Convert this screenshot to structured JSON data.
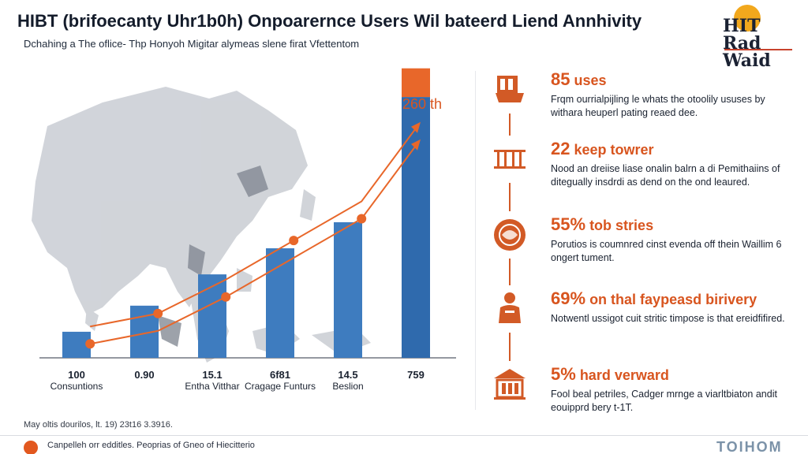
{
  "header": {
    "title": "HIBT (brifoecanty Uhr1b0h) Onpoarernce Users Wil bateerd Liend Annhivity",
    "subtitle": "Dchahing a The oflice- Thp Honyoh Migitar alymeas slene firat Vfettentom"
  },
  "logo": {
    "text": "HIT Rad Waid"
  },
  "chart_data": {
    "type": "bar",
    "title": "",
    "xlabel": "",
    "ylabel": "",
    "categories": [
      {
        "value": "100",
        "label": "Consuntions"
      },
      {
        "value": "0.90",
        "label": ""
      },
      {
        "value": "15.1",
        "label": "Entha Vitthar"
      },
      {
        "value": "6f81",
        "label": "Cragage Funturs"
      },
      {
        "value": "14.5",
        "label": "Beslion"
      },
      {
        "value": "759",
        "label": ""
      }
    ],
    "series": [
      {
        "values": [
          10,
          20,
          32,
          42,
          52,
          100
        ]
      }
    ],
    "highlight": {
      "value_label": "260 th",
      "top_segment": 11,
      "color": "#e8672a"
    },
    "ylim": [
      0,
      110
    ],
    "bar_color": "#3e7cbf",
    "last_bar_color": "#2f6aad",
    "trend_color": "#e8672a",
    "trend_points": [
      [
        0.2,
        12
      ],
      [
        1.2,
        17
      ],
      [
        2.2,
        30
      ],
      [
        3.2,
        45
      ],
      [
        4.2,
        60
      ],
      [
        5.0,
        88
      ]
    ]
  },
  "stats": [
    {
      "icon": "building-icon",
      "head_big": "85",
      "head": "uses",
      "body": "Frqm ourrialpijling le whats the otoolily ususes by withara heuperl pating reaed dee."
    },
    {
      "icon": "columns-icon",
      "head_big": "22",
      "head": "keep towrer",
      "body": "Nood an dreiise liase onalin balrn a di Pemithaiins of ditegually insdrdi as dend on the ond leaured."
    },
    {
      "icon": "globe-icon",
      "head_big": "55%",
      "head": "tob stries",
      "body": "Porutios is coumnred cinst evenda off thein Waillim 6 ongert tument."
    },
    {
      "icon": "person-icon",
      "head_big": "69%",
      "head": "on thal faypeasd birivery",
      "body": "Notwentl ussigot cuit stritic timpose is that ereidfifired."
    },
    {
      "icon": "temple-icon",
      "head_big": "5%",
      "head": "hard verward",
      "body": "Fool beal petriles, Cadger mrnge a viarltbiaton andit eouipprd bery t-1T."
    }
  ],
  "footnote": "May oltis dourilos, lt. 19) 23t16 3.3916.",
  "footer": {
    "text": "Canpelleh orr edditles. Peoprias of Gneo of Hiecitterio",
    "brand": "TOIHOM"
  },
  "colors": {
    "accent": "#e2581f",
    "bar": "#3e7cbf",
    "map": "#c9cdd3"
  }
}
